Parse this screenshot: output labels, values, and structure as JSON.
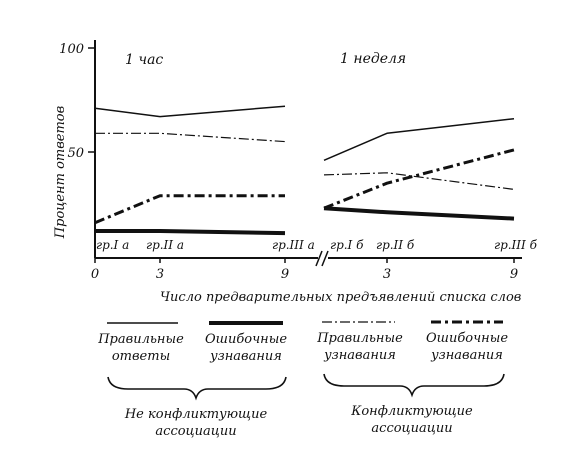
{
  "chart_data": {
    "type": "line",
    "ylabel": "Процент ответов",
    "xlabel": "Число предварительных предъявлений списка слов",
    "ylim": [
      0,
      100
    ],
    "y_ticks": [
      "100",
      "50"
    ],
    "panels": [
      {
        "title": "1 час",
        "x_values": [
          0,
          3,
          9
        ],
        "x_ticks": [
          "0",
          "3",
          "9"
        ],
        "groups": [
          "гр.I а",
          "гр.II а",
          "гр.III а"
        ],
        "series": [
          {
            "key": "correct",
            "values": [
              71,
              67,
              72
            ]
          },
          {
            "key": "conflict_correct",
            "values": [
              59,
              59,
              55
            ]
          },
          {
            "key": "conflict_errors",
            "values": [
              16,
              29,
              29
            ]
          },
          {
            "key": "errors",
            "values": [
              12,
              12,
              11
            ]
          }
        ]
      },
      {
        "title": "1 неделя",
        "x_values": [
          0,
          3,
          9
        ],
        "x_ticks": [
          "",
          "3",
          "9"
        ],
        "groups": [
          "гр.I б",
          "гр.II б",
          "гр.III б"
        ],
        "series": [
          {
            "key": "correct",
            "values": [
              46,
              59,
              66
            ]
          },
          {
            "key": "conflict_correct",
            "values": [
              39,
              40,
              32
            ]
          },
          {
            "key": "conflict_errors",
            "values": [
              23,
              35,
              51
            ]
          },
          {
            "key": "errors",
            "values": [
              23,
              21,
              18
            ]
          }
        ]
      }
    ]
  },
  "legend": {
    "items": [
      {
        "key": "correct",
        "line1": "Правильные",
        "line2": "ответы"
      },
      {
        "key": "errors",
        "line1": "Ошибочные",
        "line2": "узнавания"
      },
      {
        "key": "conflict_correct",
        "line1": "Правильные",
        "line2": "узнавания"
      },
      {
        "key": "conflict_errors",
        "line1": "Ошибочные",
        "line2": "узнавания"
      }
    ],
    "groups": [
      {
        "line1": "Не конфликтующие",
        "line2": "ассоциации"
      },
      {
        "line1": "Конфликтующие",
        "line2": "ассоциации"
      }
    ]
  }
}
